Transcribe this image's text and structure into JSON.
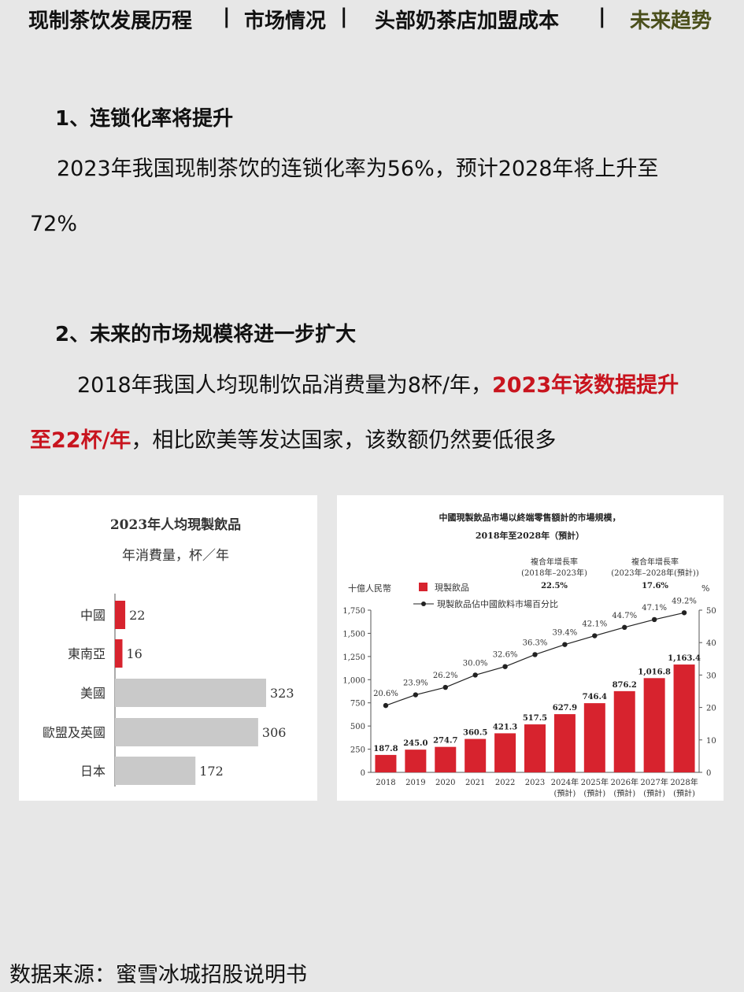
{
  "nav": {
    "item1": "现制茶饮发展历程",
    "sep1": "|",
    "item2": "市场情况",
    "sep2": "|",
    "item3": "头部奶茶店加盟成本",
    "sep3": "|",
    "item4": "未来趋势",
    "active_color": "#4a4f1b"
  },
  "section1": {
    "heading": "1、连锁化率将提升",
    "line1": "2023年我国现制茶饮的连锁化率为56%，预计2028年将上升至",
    "line2": "72%"
  },
  "section2": {
    "heading": "2、未来的市场规模将进一步扩大",
    "line1_plain": "2018年我国人均现制饮品消费量为8杯/年，",
    "line1_red": "2023年该数据提升",
    "line2_red": "至22杯/年",
    "line2_plain": "，相比欧美等发达国家，该数额仍然要低很多",
    "highlight_color": "#c8141e"
  },
  "source": "数据来源：蜜雪冰城招股说明书",
  "chart_data": [
    {
      "type": "bar",
      "orientation": "horizontal",
      "title": "2023年人均現製飲品",
      "subtitle": "年消費量，杯／年",
      "categories": [
        "中國",
        "東南亞",
        "美國",
        "歐盟及英國",
        "日本"
      ],
      "values": [
        22,
        16,
        323,
        306,
        172
      ],
      "colors": [
        "#d7232e",
        "#d7232e",
        "#c9c9c9",
        "#c9c9c9",
        "#c9c9c9"
      ],
      "grid": false
    },
    {
      "type": "bar",
      "title": "中國現製飲品市場以終端零售額計的市場規模，",
      "subtitle": "2018年至2028年（預計）",
      "ylabel": "十億人民幣",
      "y2label": "%",
      "ylim": [
        0,
        1750
      ],
      "y2lim": [
        0,
        50
      ],
      "yticks": [
        "0",
        "250",
        "500",
        "750",
        "1,000",
        "1,250",
        "1,500",
        "1,750"
      ],
      "y2ticks": [
        "0",
        "10",
        "20",
        "30",
        "40",
        "50"
      ],
      "categories": [
        "2018",
        "2019",
        "2020",
        "2021",
        "2022",
        "2023",
        "2024年",
        "2025年",
        "2026年",
        "2027年",
        "2028年"
      ],
      "category_notes": [
        "",
        "",
        "",
        "",
        "",
        "",
        "(預計)",
        "(預計)",
        "(預計)",
        "(預計)",
        "(預計)"
      ],
      "bar_color": "#d7232e",
      "series": [
        {
          "name": "現製飲品",
          "kind": "bar",
          "axis": "left",
          "values": [
            187.8,
            245.0,
            274.7,
            360.5,
            421.3,
            517.5,
            627.9,
            746.4,
            876.2,
            1016.8,
            1163.4
          ],
          "labels": [
            "187.8",
            "245.0",
            "274.7",
            "360.5",
            "421.3",
            "517.5",
            "627.9",
            "746.4",
            "876.2",
            "1,016.8",
            "1,163.4"
          ]
        },
        {
          "name": "現製飲品佔中國飲料市場百分比",
          "kind": "line",
          "axis": "right",
          "values": [
            20.6,
            23.9,
            26.2,
            30.0,
            32.6,
            36.3,
            39.4,
            42.1,
            44.7,
            47.1,
            49.2
          ],
          "labels": [
            "20.6%",
            "23.9%",
            "26.2%",
            "30.0%",
            "32.6%",
            "36.3%",
            "39.4%",
            "42.1%",
            "44.7%",
            "47.1%",
            "49.2%"
          ]
        }
      ],
      "cagr": [
        {
          "label": "複合年增長率",
          "period": "(2018年–2023年)",
          "value": "22.5%"
        },
        {
          "label": "複合年增長率",
          "period": "(2023年–2028年(預計))",
          "value": "17.6%"
        }
      ],
      "legend_position": "top-left",
      "grid": false
    }
  ]
}
